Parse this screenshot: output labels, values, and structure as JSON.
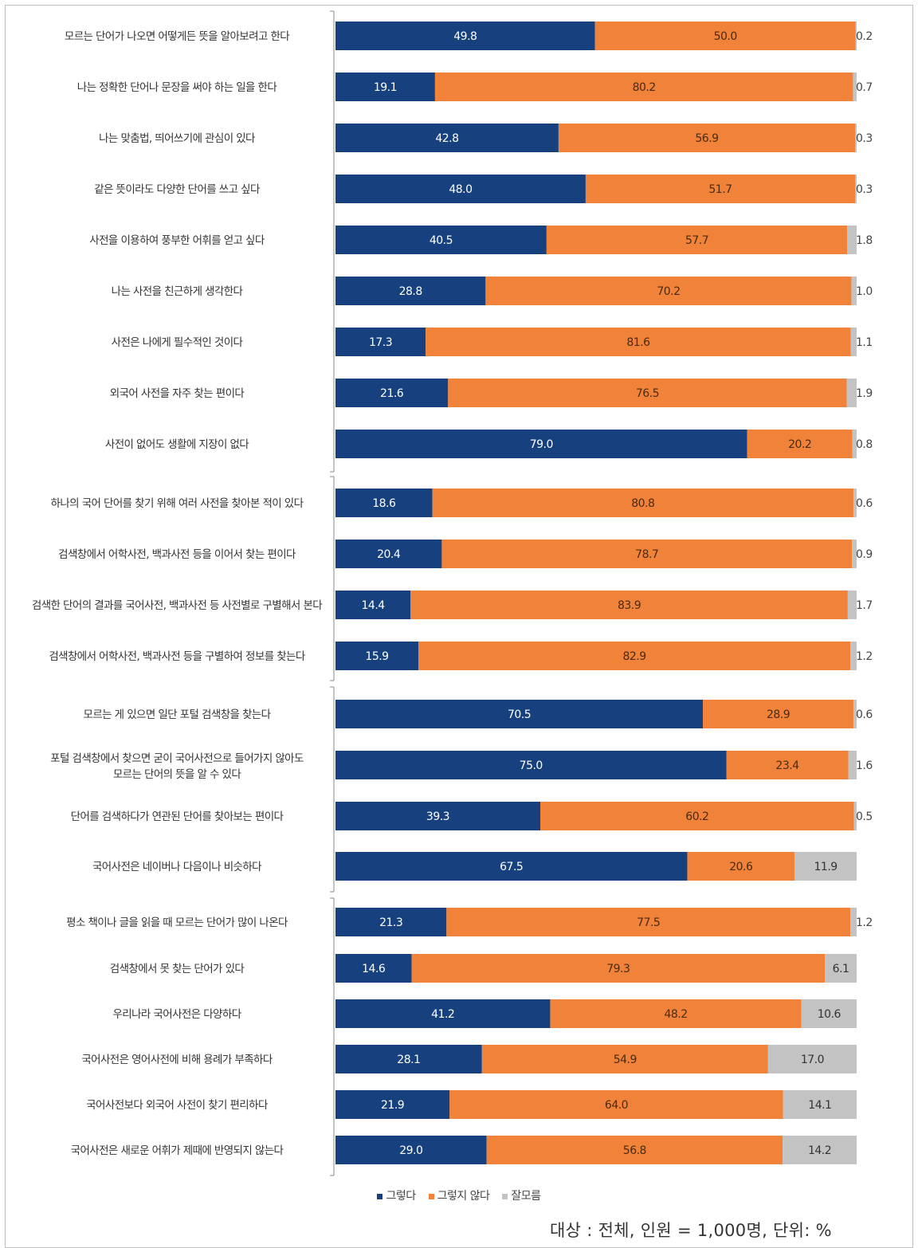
{
  "chart_data": {
    "type": "bar",
    "orientation": "horizontal",
    "stacked": true,
    "percent": true,
    "grid": false,
    "legend_position": "bottom",
    "colors": [
      "#17417e",
      "#f0823a",
      "#c3c3c3"
    ],
    "categories": [
      "모르는 단어가 나오면 어떻게든 뜻을 알아보려고 한다",
      "나는 정확한 단어나 문장을 써야 하는 일을 한다",
      "나는 맞춤법, 띄어쓰기에 관심이 있다",
      "같은 뜻이라도 다양한 단어를 쓰고 싶다",
      "사전을 이용하여 풍부한 어휘를 얻고 싶다",
      "나는 사전을 친근하게 생각한다",
      "사전은 나에게 필수적인 것이다",
      "외국어 사전을 자주 찾는 편이다",
      "사전이 없어도 생활에 지장이 없다",
      "하나의 국어 단어를 찾기 위해 여러 사전을 찾아본 적이 있다",
      "검색창에서 어학사전, 백과사전 등을 이어서 찾는 편이다",
      "검색한 단어의 결과를 국어사전, 백과사전 등 사전별로 구별해서 본다",
      "검색창에서 어학사전, 백과사전 등을 구별하여 정보를 찾는다",
      "모르는 게 있으면 일단 포털 검색창을 찾는다",
      "포털 검색창에서 찾으면 굳이 국어사전으로 들어가지 않아도\n모르는 단어의 뜻을 알 수 있다",
      "단어를 검색하다가 연관된 단어를 찾아보는 편이다",
      "국어사전은 네이버나 다음이나 비슷하다",
      "평소 책이나 글을 읽을 때 모르는 단어가 많이 나온다",
      "검색창에서 못 찾는 단어가 있다",
      "우리나라 국어사전은 다양하다",
      "국어사전은 영어사전에 비해 용례가 부족하다",
      "국어사전보다 외국어 사전이 찾기 편리하다",
      "국어사전은 새로운 어휘가 제때에 반영되지 않는다"
    ],
    "series": [
      {
        "name": "그렇다",
        "color": "#17417e",
        "values": [
          49.8,
          19.1,
          42.8,
          48.0,
          40.5,
          28.8,
          17.3,
          21.6,
          79.0,
          18.6,
          20.4,
          14.4,
          15.9,
          70.5,
          75.0,
          39.3,
          67.5,
          21.3,
          14.6,
          41.2,
          28.1,
          21.9,
          29.0
        ]
      },
      {
        "name": "그렇지 않다",
        "color": "#f0823a",
        "values": [
          50.0,
          80.2,
          56.9,
          51.7,
          57.7,
          70.2,
          81.6,
          76.5,
          20.2,
          80.8,
          78.7,
          83.9,
          82.9,
          28.9,
          23.4,
          60.2,
          20.6,
          77.5,
          79.3,
          48.2,
          54.9,
          64.0,
          56.8
        ]
      },
      {
        "name": "잘모름",
        "color": "#c3c3c3",
        "values": [
          0.2,
          0.7,
          0.3,
          0.3,
          1.8,
          1.0,
          1.1,
          1.9,
          0.8,
          0.6,
          0.9,
          1.7,
          1.2,
          0.6,
          1.6,
          0.5,
          11.9,
          1.2,
          6.1,
          10.6,
          17.0,
          14.1,
          14.2
        ]
      }
    ],
    "value_labels": [
      [
        "49.8",
        "50.0",
        "0.2"
      ],
      [
        "19.1",
        "80.2",
        "0.7"
      ],
      [
        "42.8",
        "56.9",
        "0.3"
      ],
      [
        "48.0",
        "51.7",
        "0.3"
      ],
      [
        "40.5",
        "57.7",
        "1.8"
      ],
      [
        "28.8",
        "70.2",
        "1.0"
      ],
      [
        "17.3",
        "81.6",
        "1.1"
      ],
      [
        "21.6",
        "76.5",
        "1.9"
      ],
      [
        "79.0",
        "20.2",
        "0.8"
      ],
      [
        "18.6",
        "80.8",
        "0.6"
      ],
      [
        "20.4",
        "78.7",
        "0.9"
      ],
      [
        "14.4",
        "83.9",
        "1.7"
      ],
      [
        "15.9",
        "82.9",
        "1.2"
      ],
      [
        "70.5",
        "28.9",
        "0.6"
      ],
      [
        "75.0",
        "23.4",
        "1.6"
      ],
      [
        "39.3",
        "60.2",
        "0.5"
      ],
      [
        "67.5",
        "20.6",
        "11.9"
      ],
      [
        "21.3",
        "77.5",
        "1.2"
      ],
      [
        "14.6",
        "79.3",
        "6.1"
      ],
      [
        "41.2",
        "48.2",
        "10.6"
      ],
      [
        "28.1",
        "54.9",
        "17.0"
      ],
      [
        "21.9",
        "64.0",
        "14.1"
      ],
      [
        "29.0",
        "56.8",
        "14.2"
      ]
    ]
  },
  "legend": {
    "items": [
      {
        "label": "그렇다",
        "color": "#17417e"
      },
      {
        "label": "그렇지 않다",
        "color": "#f0823a"
      },
      {
        "label": "잘모름",
        "color": "#c3c3c3"
      }
    ]
  },
  "footnote": "대상 : 전체, 인원 = 1,000명, 단위: %"
}
